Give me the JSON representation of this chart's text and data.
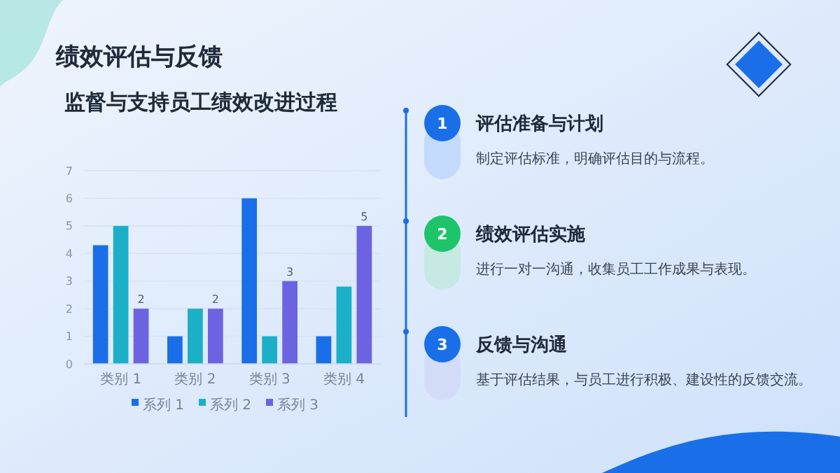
{
  "chart_data": [
    {
      "type": "bar",
      "title": "绩效评估与反馈",
      "subtitle": "监督与支持员工绩效改进过程",
      "categories": [
        "类别 1",
        "类别 2",
        "类别 3",
        "类别 4"
      ],
      "series": [
        {
          "name": "系列 1",
          "color": "#1a6fe8",
          "values": [
            4.3,
            1,
            6,
            1
          ]
        },
        {
          "name": "系列 2",
          "color": "#1cb0c8",
          "values": [
            5,
            2,
            1,
            2.8
          ]
        },
        {
          "name": "系列 3",
          "color": "#6c63e0",
          "values": [
            2,
            2,
            3,
            5
          ],
          "value_labels": [
            "2",
            "2",
            "3",
            "5"
          ]
        }
      ],
      "ylim": [
        0,
        7
      ],
      "yticks": [
        0,
        1,
        2,
        3,
        4,
        5,
        6,
        7
      ],
      "grid": "y",
      "legend": "bottom"
    },
    {
      "type": "other",
      "annotations": [
        "1",
        "评估准备与计划",
        "制定评估标准，明确评估目的与流程。",
        "2",
        "绩效评估实施",
        "进行一对一沟通，收集员工工作成果与表现。",
        "3",
        "反馈与沟通",
        "基于评估结果，与员工进行积极、建设性的反馈交流。"
      ]
    }
  ]
}
